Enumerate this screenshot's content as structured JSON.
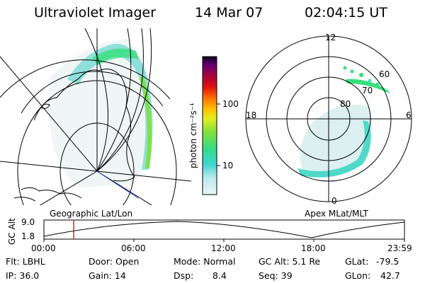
{
  "header": {
    "instrument": "Ultraviolet Imager",
    "date": "14 Mar 07",
    "time": "02:04:15 UT"
  },
  "colorbar": {
    "label": "photon cm⁻²s⁻¹",
    "ticks": [
      "100",
      "10"
    ]
  },
  "polar_plot": {
    "mlt_labels": [
      "12",
      "18",
      "6",
      "0"
    ],
    "lat_labels": [
      "60",
      "70",
      "80"
    ]
  },
  "panel_captions": {
    "left": "Geographic Lat/Lon",
    "right": "Apex MLat/MLT"
  },
  "altitude_strip": {
    "ylabel": "GC Alt",
    "ytick_max": "9.0",
    "ytick_min": "1.8",
    "xticks": [
      "00:00",
      "06:00",
      "12:00",
      "18:00",
      "23:59"
    ]
  },
  "info": {
    "row1": {
      "flt": "Flt: LBHL",
      "door": "Door: Open",
      "mode": "Mode: Normal",
      "gcalt": "GC Alt: 5.1 Re",
      "glat_label": "GLat:",
      "glat_value": "-79.5"
    },
    "row2": {
      "ip": "IP: 36.0",
      "gain": "Gain: 14",
      "dsp_label": "Dsp:",
      "dsp_value": "8.4",
      "seq": "Seq: 39",
      "glon_label": "GLon:",
      "glon_value": "42.7"
    }
  },
  "colors": {
    "aurora_pale": "#d0eef0",
    "aurora_cyan": "#4fd9c9",
    "aurora_green": "#35e07a",
    "cursor": "#e02020",
    "coast": "#0000cc"
  }
}
